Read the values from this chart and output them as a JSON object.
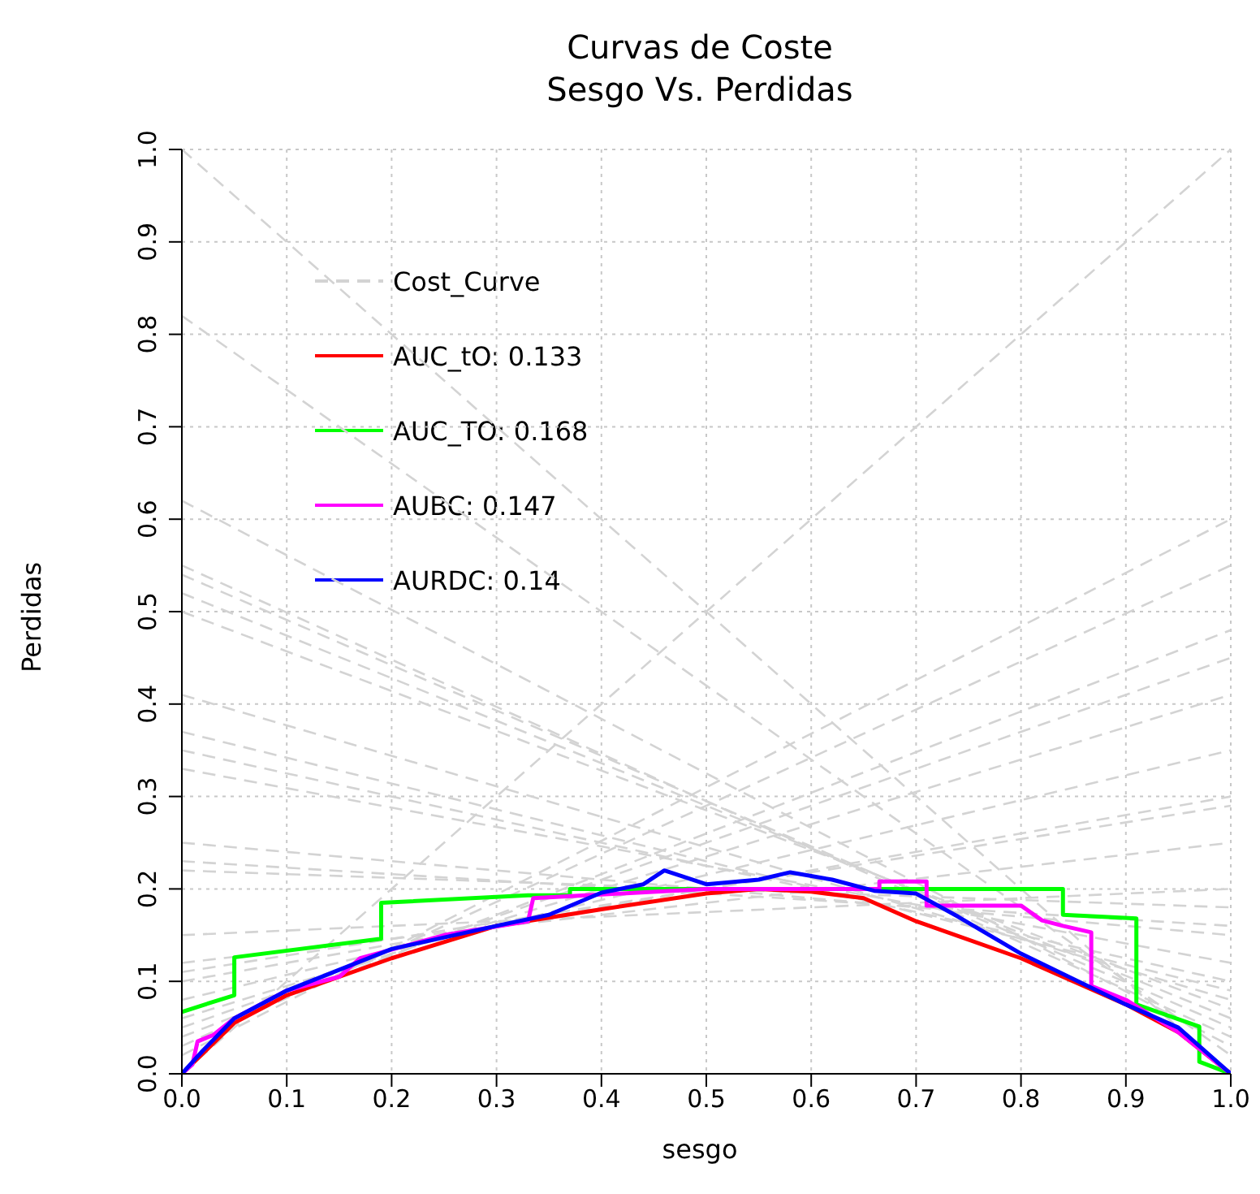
{
  "chart_data": {
    "type": "line",
    "title": "Curvas de Coste",
    "subtitle": "Sesgo Vs. Perdidas",
    "xlabel": "sesgo",
    "ylabel": "Perdidas",
    "xlim": [
      0,
      1
    ],
    "ylim": [
      0,
      1
    ],
    "xticks": [
      {
        "value": 0,
        "label": "0.0"
      },
      0.1,
      0.2,
      0.3,
      0.4,
      0.5,
      0.6,
      0.7,
      0.8,
      0.9,
      {
        "value": 1,
        "label": "1.0"
      }
    ],
    "yticks": [
      {
        "value": 0,
        "label": "0.0"
      },
      0.1,
      0.2,
      0.3,
      0.4,
      0.5,
      0.6,
      0.7,
      0.8,
      0.9,
      {
        "value": 1,
        "label": "1.0"
      }
    ],
    "grid": true,
    "legend": "top left",
    "marker": "none",
    "series": [
      {
        "name": "Cost_Curve",
        "color": "#d3d3d3",
        "line_style": "dashed",
        "x": [
          0,
          1
        ],
        "values": [
          1.0,
          0.0
        ]
      },
      {
        "color": "#d3d3d3",
        "line_style": "dashed",
        "x": [
          0,
          1
        ],
        "values": [
          0.82,
          0.02
        ]
      },
      {
        "color": "#d3d3d3",
        "line_style": "dashed",
        "x": [
          0,
          1
        ],
        "values": [
          0.62,
          0.03
        ]
      },
      {
        "color": "#d3d3d3",
        "line_style": "dashed",
        "x": [
          0,
          1
        ],
        "values": [
          0.55,
          0.04
        ]
      },
      {
        "color": "#d3d3d3",
        "line_style": "dashed",
        "x": [
          0,
          1
        ],
        "values": [
          0.54,
          0.05
        ]
      },
      {
        "color": "#d3d3d3",
        "line_style": "dashed",
        "x": [
          0,
          1
        ],
        "values": [
          0.52,
          0.06
        ]
      },
      {
        "color": "#d3d3d3",
        "line_style": "dashed",
        "x": [
          0,
          1
        ],
        "values": [
          0.5,
          0.07
        ]
      },
      {
        "color": "#d3d3d3",
        "line_style": "dashed",
        "x": [
          0,
          1
        ],
        "values": [
          0.41,
          0.08
        ]
      },
      {
        "color": "#d3d3d3",
        "line_style": "dashed",
        "x": [
          0,
          1
        ],
        "values": [
          0.37,
          0.09
        ]
      },
      {
        "color": "#d3d3d3",
        "line_style": "dashed",
        "x": [
          0,
          1
        ],
        "values": [
          0.35,
          0.1
        ]
      },
      {
        "color": "#d3d3d3",
        "line_style": "dashed",
        "x": [
          0,
          1
        ],
        "values": [
          0.33,
          0.12
        ]
      },
      {
        "color": "#d3d3d3",
        "line_style": "dashed",
        "x": [
          0,
          1
        ],
        "values": [
          0.25,
          0.15
        ]
      },
      {
        "color": "#d3d3d3",
        "line_style": "dashed",
        "x": [
          0,
          1
        ],
        "values": [
          0.23,
          0.16
        ]
      },
      {
        "color": "#d3d3d3",
        "line_style": "dashed",
        "x": [
          0,
          1
        ],
        "values": [
          0.22,
          0.18
        ]
      },
      {
        "color": "#d3d3d3",
        "line_style": "dashed",
        "x": [
          0,
          1
        ],
        "values": [
          0.15,
          0.2
        ]
      },
      {
        "color": "#d3d3d3",
        "line_style": "dashed",
        "x": [
          0,
          1
        ],
        "values": [
          0.12,
          0.25
        ]
      },
      {
        "color": "#d3d3d3",
        "line_style": "dashed",
        "x": [
          0,
          1
        ],
        "values": [
          0.11,
          0.29
        ]
      },
      {
        "color": "#d3d3d3",
        "line_style": "dashed",
        "x": [
          0,
          1
        ],
        "values": [
          0.1,
          0.3
        ]
      },
      {
        "color": "#d3d3d3",
        "line_style": "dashed",
        "x": [
          0,
          1
        ],
        "values": [
          0.08,
          0.35
        ]
      },
      {
        "color": "#d3d3d3",
        "line_style": "dashed",
        "x": [
          0,
          1
        ],
        "values": [
          0.06,
          0.41
        ]
      },
      {
        "color": "#d3d3d3",
        "line_style": "dashed",
        "x": [
          0,
          1
        ],
        "values": [
          0.05,
          0.45
        ]
      },
      {
        "color": "#d3d3d3",
        "line_style": "dashed",
        "x": [
          0,
          1
        ],
        "values": [
          0.04,
          0.48
        ]
      },
      {
        "color": "#d3d3d3",
        "line_style": "dashed",
        "x": [
          0,
          1
        ],
        "values": [
          0.03,
          0.55
        ]
      },
      {
        "color": "#d3d3d3",
        "line_style": "dashed",
        "x": [
          0,
          1
        ],
        "values": [
          0.02,
          0.6
        ]
      },
      {
        "color": "#d3d3d3",
        "line_style": "dashed",
        "x": [
          0,
          1
        ],
        "values": [
          0.0,
          1.0
        ]
      },
      {
        "name": "AUC_tO: 0.133",
        "color": "#ff0000",
        "line_style": "solid",
        "x": [
          0,
          0.05,
          0.1,
          0.2,
          0.3,
          0.4,
          0.5,
          0.55,
          0.6,
          0.65,
          0.7,
          0.8,
          0.9,
          0.95,
          1
        ],
        "values": [
          0,
          0.055,
          0.085,
          0.125,
          0.16,
          0.178,
          0.195,
          0.2,
          0.197,
          0.19,
          0.165,
          0.125,
          0.075,
          0.045,
          0
        ]
      },
      {
        "name": "AUC_TO: 0.168",
        "color": "#00ff00",
        "line_style": "solid",
        "x": [
          0,
          0.05,
          0.05,
          0.19,
          0.19,
          0.33,
          0.37,
          0.37,
          0.84,
          0.84,
          0.91,
          0.91,
          0.97,
          0.97,
          1
        ],
        "values": [
          0.067,
          0.085,
          0.126,
          0.146,
          0.185,
          0.193,
          0.193,
          0.2,
          0.2,
          0.172,
          0.168,
          0.075,
          0.051,
          0.013,
          0
        ]
      },
      {
        "name": "AUBC: 0.147",
        "color": "#ff00ff",
        "line_style": "solid",
        "x": [
          0,
          0.01,
          0.015,
          0.03,
          0.05,
          0.1,
          0.15,
          0.17,
          0.25,
          0.33,
          0.335,
          0.5,
          0.665,
          0.665,
          0.71,
          0.71,
          0.8,
          0.82,
          0.84,
          0.867,
          0.867,
          0.9,
          0.95,
          1
        ],
        "values": [
          0,
          0.01,
          0.035,
          0.042,
          0.06,
          0.09,
          0.105,
          0.125,
          0.15,
          0.165,
          0.19,
          0.2,
          0.2,
          0.208,
          0.208,
          0.182,
          0.182,
          0.166,
          0.16,
          0.153,
          0.095,
          0.08,
          0.045,
          0
        ]
      },
      {
        "name": "AURDC: 0.14",
        "color": "#0000ff",
        "line_style": "solid",
        "x": [
          0,
          0.02,
          0.05,
          0.1,
          0.2,
          0.3,
          0.35,
          0.4,
          0.44,
          0.46,
          0.5,
          0.55,
          0.58,
          0.62,
          0.66,
          0.7,
          0.74,
          0.8,
          0.9,
          0.95,
          1
        ],
        "values": [
          0,
          0.025,
          0.06,
          0.09,
          0.135,
          0.16,
          0.172,
          0.196,
          0.205,
          0.22,
          0.205,
          0.21,
          0.218,
          0.21,
          0.198,
          0.195,
          0.17,
          0.13,
          0.075,
          0.05,
          0
        ]
      }
    ]
  }
}
